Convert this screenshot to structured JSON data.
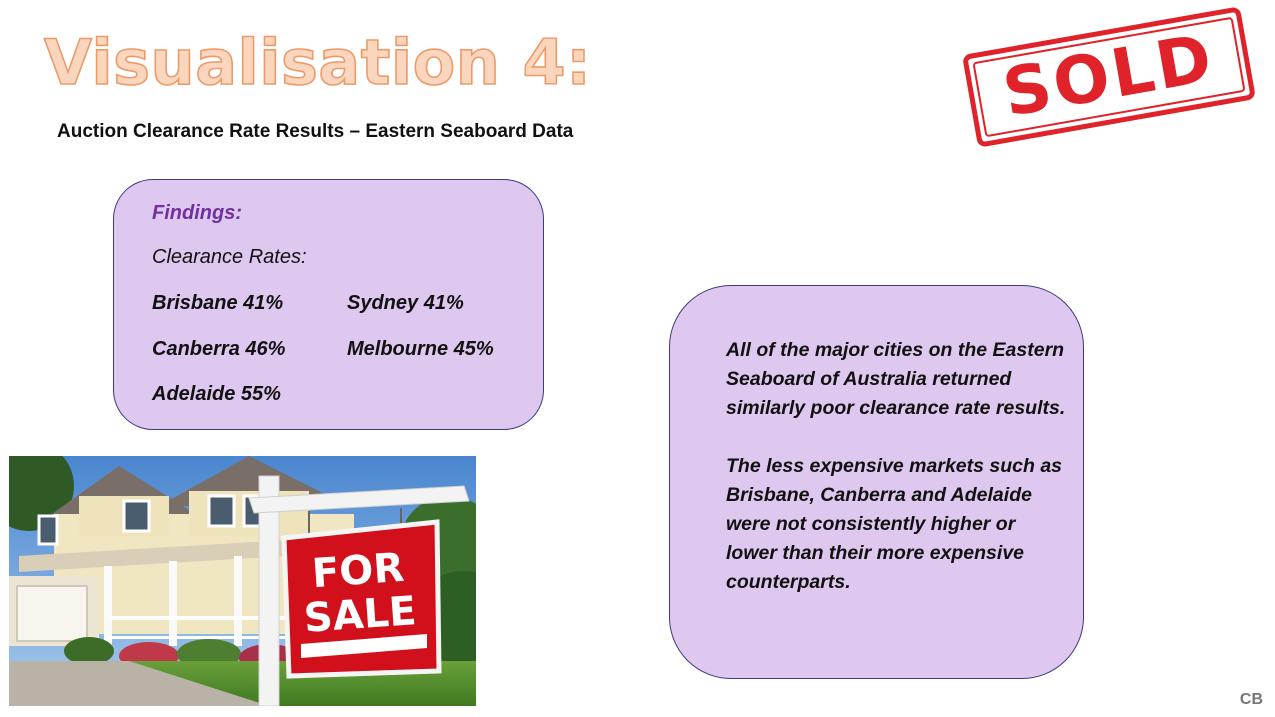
{
  "slide": {
    "title": "Visualisation 4:",
    "subtitle": "Auction Clearance Rate Results – Eastern Seaboard Data"
  },
  "findings": {
    "heading": "Findings:",
    "subheading": "Clearance Rates:",
    "cities": [
      {
        "text": "Brisbane 41%"
      },
      {
        "text": "Sydney 41%"
      },
      {
        "text": "Canberra 46%"
      },
      {
        "text": "Melbourne 45%"
      },
      {
        "text": "Adelaide 55%"
      }
    ]
  },
  "summary": {
    "paragraphs": [
      "All of the major cities on the Eastern Seaboard of Australia returned similarly poor clearance rate results.",
      "The less expensive markets such as Brisbane, Canberra and Adelaide were not consistently higher or lower than their more expensive counterparts."
    ]
  },
  "stamp": {
    "text": "SOLD",
    "color": "#e0222a"
  },
  "photo": {
    "sign_line1": "FOR",
    "sign_line2": "SALE",
    "sign_color": "#d1101c"
  },
  "footer": {
    "initials": "CB"
  },
  "colors": {
    "title_fill": "#fbd6bf",
    "title_stroke": "#ee9a68",
    "box_fill": "#dec8ef",
    "accent": "#7030a0"
  }
}
